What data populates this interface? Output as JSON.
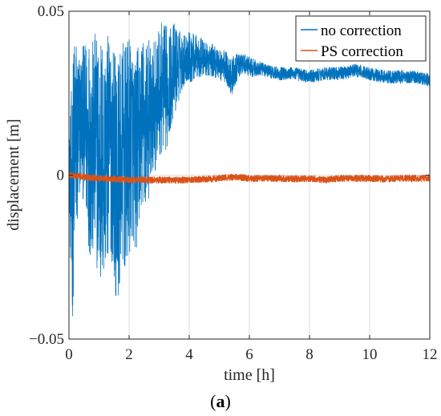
{
  "chart_data": {
    "type": "line",
    "xlabel": "time [h]",
    "ylabel": "displacement [m]",
    "xlim": [
      0,
      12
    ],
    "ylim": [
      -0.05,
      0.05
    ],
    "x_ticks": [
      0,
      2,
      4,
      6,
      8,
      10,
      12
    ],
    "y_ticks": [
      -0.05,
      0,
      0.05
    ],
    "y_tick_labels": [
      "−0.05",
      "0",
      "0.05"
    ],
    "grid": true,
    "legend_position": "top-right",
    "series": [
      {
        "name": "no correction",
        "color": "#0072BD",
        "x": [
          0,
          0.1,
          0.2,
          0.3,
          0.4,
          0.5,
          0.6,
          0.7,
          0.8,
          0.9,
          1.0,
          1.1,
          1.2,
          1.3,
          1.4,
          1.5,
          1.6,
          1.7,
          1.8,
          1.9,
          2.0,
          2.1,
          2.2,
          2.3,
          2.4,
          2.5,
          2.6,
          2.7,
          2.8,
          2.9,
          3.0,
          3.1,
          3.2,
          3.3,
          3.4,
          3.5,
          3.6,
          3.7,
          3.8,
          3.9,
          4.0,
          4.2,
          4.4,
          4.6,
          4.8,
          5.0,
          5.2,
          5.4,
          5.6,
          5.8,
          6.0,
          6.5,
          7.0,
          7.5,
          8.0,
          8.5,
          9.0,
          9.5,
          10.0,
          10.5,
          11.0,
          11.5,
          12.0
        ],
        "y": [
          0.002,
          -0.01,
          0.012,
          0.01,
          0.018,
          0.015,
          0.012,
          0.01,
          0.006,
          0.01,
          0.003,
          0.004,
          0.005,
          0.008,
          0.01,
          0.004,
          -0.002,
          0.002,
          0.006,
          0.004,
          0.008,
          0.012,
          0.005,
          0.01,
          0.015,
          0.014,
          0.018,
          0.016,
          0.02,
          0.022,
          0.025,
          0.027,
          0.026,
          0.028,
          0.03,
          0.032,
          0.033,
          0.034,
          0.035,
          0.036,
          0.036,
          0.036,
          0.036,
          0.035,
          0.035,
          0.034,
          0.033,
          0.03,
          0.033,
          0.034,
          0.033,
          0.032,
          0.031,
          0.031,
          0.03,
          0.031,
          0.031,
          0.032,
          0.031,
          0.03,
          0.03,
          0.03,
          0.029
        ],
        "noise_amplitude": [
          0.008,
          0.04,
          0.035,
          0.03,
          0.02,
          0.025,
          0.03,
          0.035,
          0.035,
          0.035,
          0.04,
          0.04,
          0.035,
          0.035,
          0.035,
          0.035,
          0.04,
          0.035,
          0.035,
          0.035,
          0.035,
          0.03,
          0.03,
          0.03,
          0.025,
          0.03,
          0.025,
          0.025,
          0.02,
          0.02,
          0.02,
          0.02,
          0.02,
          0.018,
          0.015,
          0.015,
          0.012,
          0.01,
          0.008,
          0.008,
          0.008,
          0.007,
          0.006,
          0.005,
          0.005,
          0.005,
          0.005,
          0.006,
          0.004,
          0.003,
          0.003,
          0.002,
          0.002,
          0.002,
          0.002,
          0.002,
          0.002,
          0.002,
          0.002,
          0.002,
          0.002,
          0.002,
          0.002
        ]
      },
      {
        "name": "PS correction",
        "color": "#D95319",
        "x": [
          0,
          0.5,
          1,
          1.5,
          2,
          2.5,
          3,
          3.5,
          4,
          4.5,
          5,
          5.5,
          6,
          6.5,
          7,
          7.5,
          8,
          8.5,
          9,
          9.5,
          10,
          10.5,
          11,
          11.5,
          12
        ],
        "y": [
          0.0,
          -0.0005,
          -0.001,
          -0.0012,
          -0.0015,
          -0.0015,
          -0.0015,
          -0.0015,
          -0.0015,
          -0.0012,
          -0.001,
          -0.0005,
          -0.001,
          -0.001,
          -0.001,
          -0.0012,
          -0.001,
          -0.0015,
          -0.001,
          -0.001,
          -0.001,
          -0.0012,
          -0.001,
          -0.001,
          -0.001
        ],
        "noise_amplitude": 0.001
      }
    ]
  },
  "legend": {
    "items": [
      {
        "label": "no correction",
        "color": "#0072BD"
      },
      {
        "label": "PS correction",
        "color": "#D95319"
      }
    ]
  },
  "caption": {
    "open": "(",
    "letter": "a",
    "close": ")"
  }
}
